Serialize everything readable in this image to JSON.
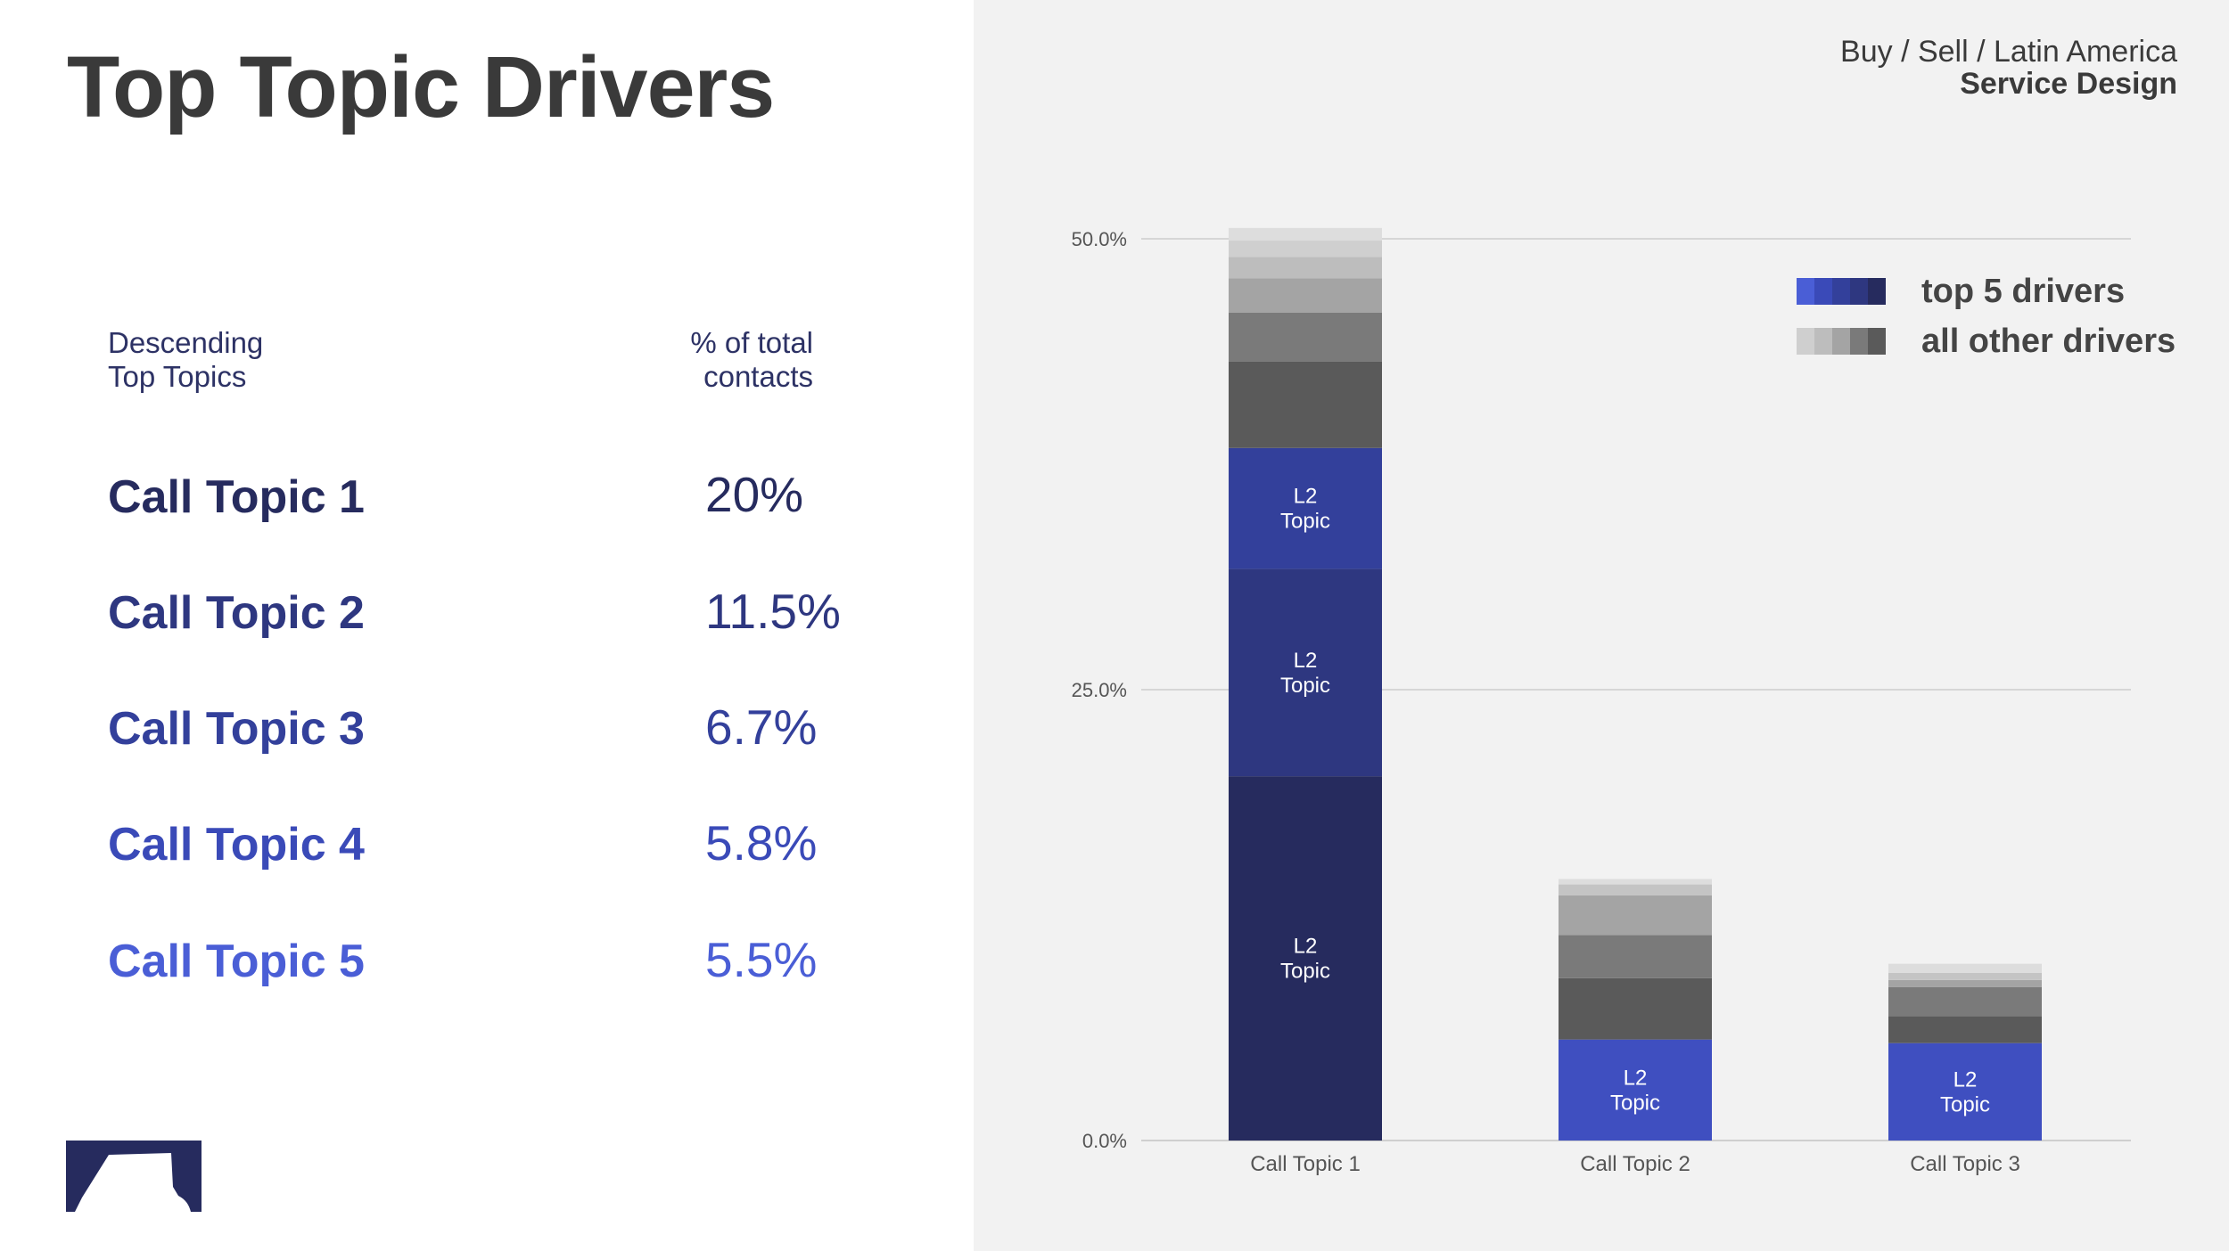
{
  "page": {
    "title": "Top Topic Drivers",
    "subtitle_line1": "Buy / Sell / Latin America",
    "subtitle_line2": "Service Design"
  },
  "table": {
    "header_left_line1": "Descending",
    "header_left_line2": "Top Topics",
    "header_right_line1": "% of total",
    "header_right_line2": "contacts",
    "rows": [
      {
        "label": "Call Topic 1",
        "value": "20%",
        "color": "#262b5e"
      },
      {
        "label": "Call Topic 2",
        "value": "11.5%",
        "color": "#2e3780"
      },
      {
        "label": "Call Topic 3",
        "value": "6.7%",
        "color": "#33409b"
      },
      {
        "label": "Call Topic 4",
        "value": "5.8%",
        "color": "#3a4ab8"
      },
      {
        "label": "Call Topic 5",
        "value": "5.5%",
        "color": "#4a5ed6"
      }
    ]
  },
  "legend": {
    "top": {
      "label": "top 5 drivers",
      "colors": [
        "#4a5ed6",
        "#3a4ab8",
        "#33409b",
        "#2e3780",
        "#262b5e"
      ]
    },
    "other": {
      "label": "all other drivers",
      "colors": [
        "#cfcfcf",
        "#bdbdbd",
        "#a4a4a4",
        "#7a7a7a",
        "#5a5a5a"
      ]
    }
  },
  "chart_data": {
    "type": "bar",
    "stacked": true,
    "categories": [
      "Call Topic 1",
      "Call Topic 2",
      "Call Topic 3"
    ],
    "ylim": [
      0,
      50
    ],
    "yticks": [
      0,
      25,
      50
    ],
    "ytick_labels": [
      "0.0%",
      "25.0%",
      "50.0%"
    ],
    "grid": true,
    "legend_position": "top-right",
    "segment_label": "L2\nTopic",
    "stacks": [
      [
        {
          "value": 20.2,
          "color": "#262b5e",
          "label": "L2\nTopic"
        },
        {
          "value": 11.5,
          "color": "#2e3780",
          "label": "L2\nTopic"
        },
        {
          "value": 6.7,
          "color": "#33409b",
          "label": "L2\nTopic"
        },
        {
          "value": 4.8,
          "color": "#5a5a5a"
        },
        {
          "value": 2.7,
          "color": "#7a7a7a"
        },
        {
          "value": 1.9,
          "color": "#a4a4a4"
        },
        {
          "value": 1.2,
          "color": "#bdbdbd"
        },
        {
          "value": 0.9,
          "color": "#cfcfcf"
        },
        {
          "value": 0.7,
          "color": "#dddddd"
        }
      ],
      [
        {
          "value": 5.6,
          "color": "#3f4fc0",
          "label": "L2\nTopic"
        },
        {
          "value": 3.4,
          "color": "#5a5a5a"
        },
        {
          "value": 2.4,
          "color": "#7a7a7a"
        },
        {
          "value": 2.2,
          "color": "#a4a4a4"
        },
        {
          "value": 0.6,
          "color": "#c4c4c4"
        },
        {
          "value": 0.3,
          "color": "#dddddd"
        }
      ],
      [
        {
          "value": 5.4,
          "color": "#3f4fc0",
          "label": "L2\nTopic"
        },
        {
          "value": 1.5,
          "color": "#5a5a5a"
        },
        {
          "value": 1.6,
          "color": "#7a7a7a"
        },
        {
          "value": 0.4,
          "color": "#a4a4a4"
        },
        {
          "value": 0.4,
          "color": "#c4c4c4"
        },
        {
          "value": 0.5,
          "color": "#dddddd"
        }
      ]
    ]
  }
}
